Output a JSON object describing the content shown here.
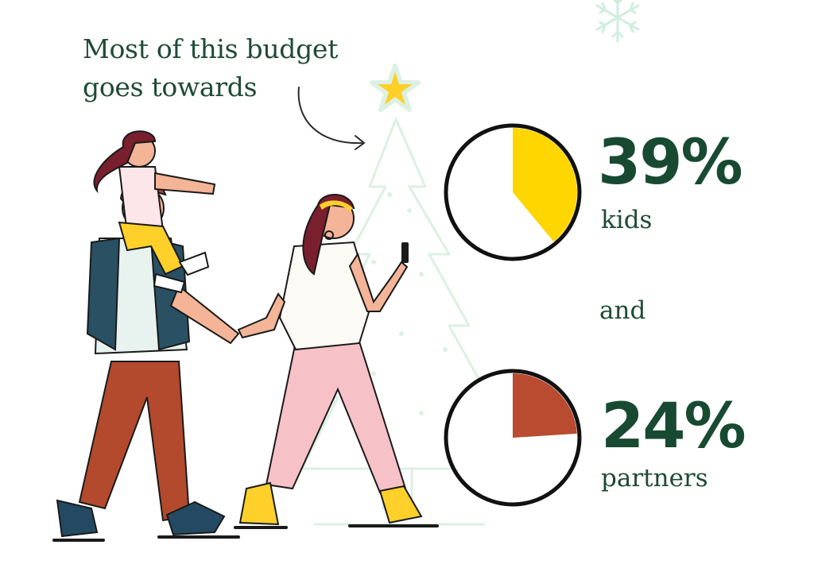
{
  "headline": "Most of this budget goes towards",
  "connector": "and",
  "colors": {
    "text": "#1f4b36",
    "kids": "#ffd600",
    "partners": "#b84b30",
    "tree_outline": "#d8efe0"
  },
  "chart_data": [
    {
      "type": "pie",
      "categories": [
        "kids"
      ],
      "values": [
        39
      ],
      "value_label": "39%",
      "label": "kids",
      "color": "#ffd600"
    },
    {
      "type": "pie",
      "categories": [
        "partners"
      ],
      "values": [
        24
      ],
      "value_label": "24%",
      "label": "partners",
      "color": "#b84b30"
    }
  ],
  "illustration": {
    "icons": [
      "snowflake-icon",
      "star-icon",
      "christmas-tree-icon",
      "curved-arrow-icon",
      "family-illustration"
    ]
  }
}
